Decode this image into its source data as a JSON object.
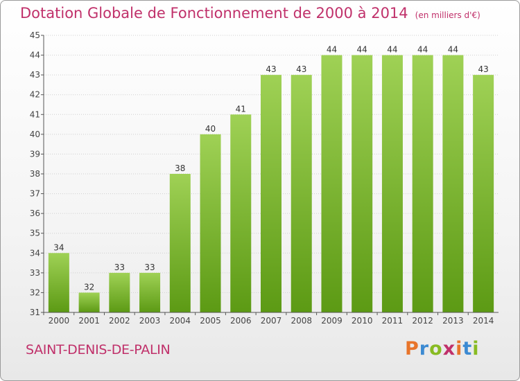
{
  "title": "Dotation Globale de Fonctionnement de 2000 à 2014",
  "unit": "(en milliers d'€)",
  "commune": "SAINT-DENIS-DE-PALIN",
  "logo": {
    "text": "Proxiti",
    "colors": [
      "#e8742a",
      "#3c8ad2",
      "#88bb22",
      "#c0306a",
      "#e8742a",
      "#3c8ad2",
      "#88bb22"
    ]
  },
  "colors": {
    "title": "#c0306a",
    "bar_light": "#9fd155",
    "bar_dark": "#5c9a14",
    "axis": "#555555",
    "grid": "#d0d0d0"
  },
  "chart_data": {
    "type": "bar",
    "title": "Dotation Globale de Fonctionnement de 2000 à 2014",
    "categories": [
      "2000",
      "2001",
      "2002",
      "2003",
      "2004",
      "2005",
      "2006",
      "2007",
      "2008",
      "2009",
      "2010",
      "2011",
      "2012",
      "2013",
      "2014"
    ],
    "values": [
      34,
      32,
      33,
      33,
      38,
      40,
      41,
      43,
      43,
      44,
      44,
      44,
      44,
      44,
      43
    ],
    "ylim": [
      31,
      45
    ],
    "yticks": [
      31,
      32,
      33,
      34,
      35,
      36,
      37,
      38,
      39,
      40,
      41,
      42,
      43,
      44,
      45
    ],
    "xlabel": "",
    "ylabel": "",
    "grid": true,
    "legend": "none"
  }
}
